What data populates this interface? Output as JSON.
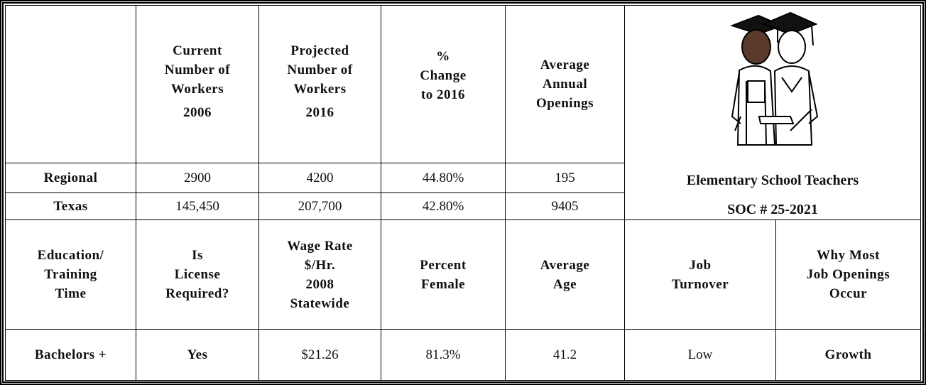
{
  "stats_table": {
    "columns": [
      {
        "lines": [
          "Current",
          "Number of",
          "Workers",
          "2006"
        ]
      },
      {
        "lines": [
          "Projected",
          "Number of",
          "Workers",
          "2016"
        ]
      },
      {
        "lines": [
          "%",
          "Change",
          "to 2016"
        ]
      },
      {
        "lines": [
          "Average",
          "Annual",
          "Openings"
        ]
      }
    ],
    "rows": [
      {
        "label": "Regional",
        "values": [
          "2900",
          "4200",
          "44.80%",
          "195"
        ]
      },
      {
        "label": "Texas",
        "values": [
          "145,450",
          "207,700",
          "42.80%",
          "9405"
        ]
      }
    ]
  },
  "occupation": {
    "title": "Elementary School Teachers",
    "soc": "SOC # 25-2021"
  },
  "details_table": {
    "headers": [
      {
        "lines": [
          "Education/",
          "Training",
          "Time"
        ]
      },
      {
        "lines": [
          "Is",
          "License",
          "Required?"
        ]
      },
      {
        "lines": [
          "Wage Rate",
          "$/Hr.",
          "2008",
          "Statewide"
        ]
      },
      {
        "lines": [
          "Percent",
          "Female"
        ]
      },
      {
        "lines": [
          "Average",
          "Age"
        ]
      },
      {
        "lines": [
          "Job",
          "Turnover"
        ]
      },
      {
        "lines": [
          "Why Most",
          "Job Openings",
          "Occur"
        ]
      }
    ],
    "values": [
      "Bachelors +",
      "Yes",
      "$21.26",
      "81.3%",
      "41.2",
      "Low",
      "Growth"
    ]
  }
}
